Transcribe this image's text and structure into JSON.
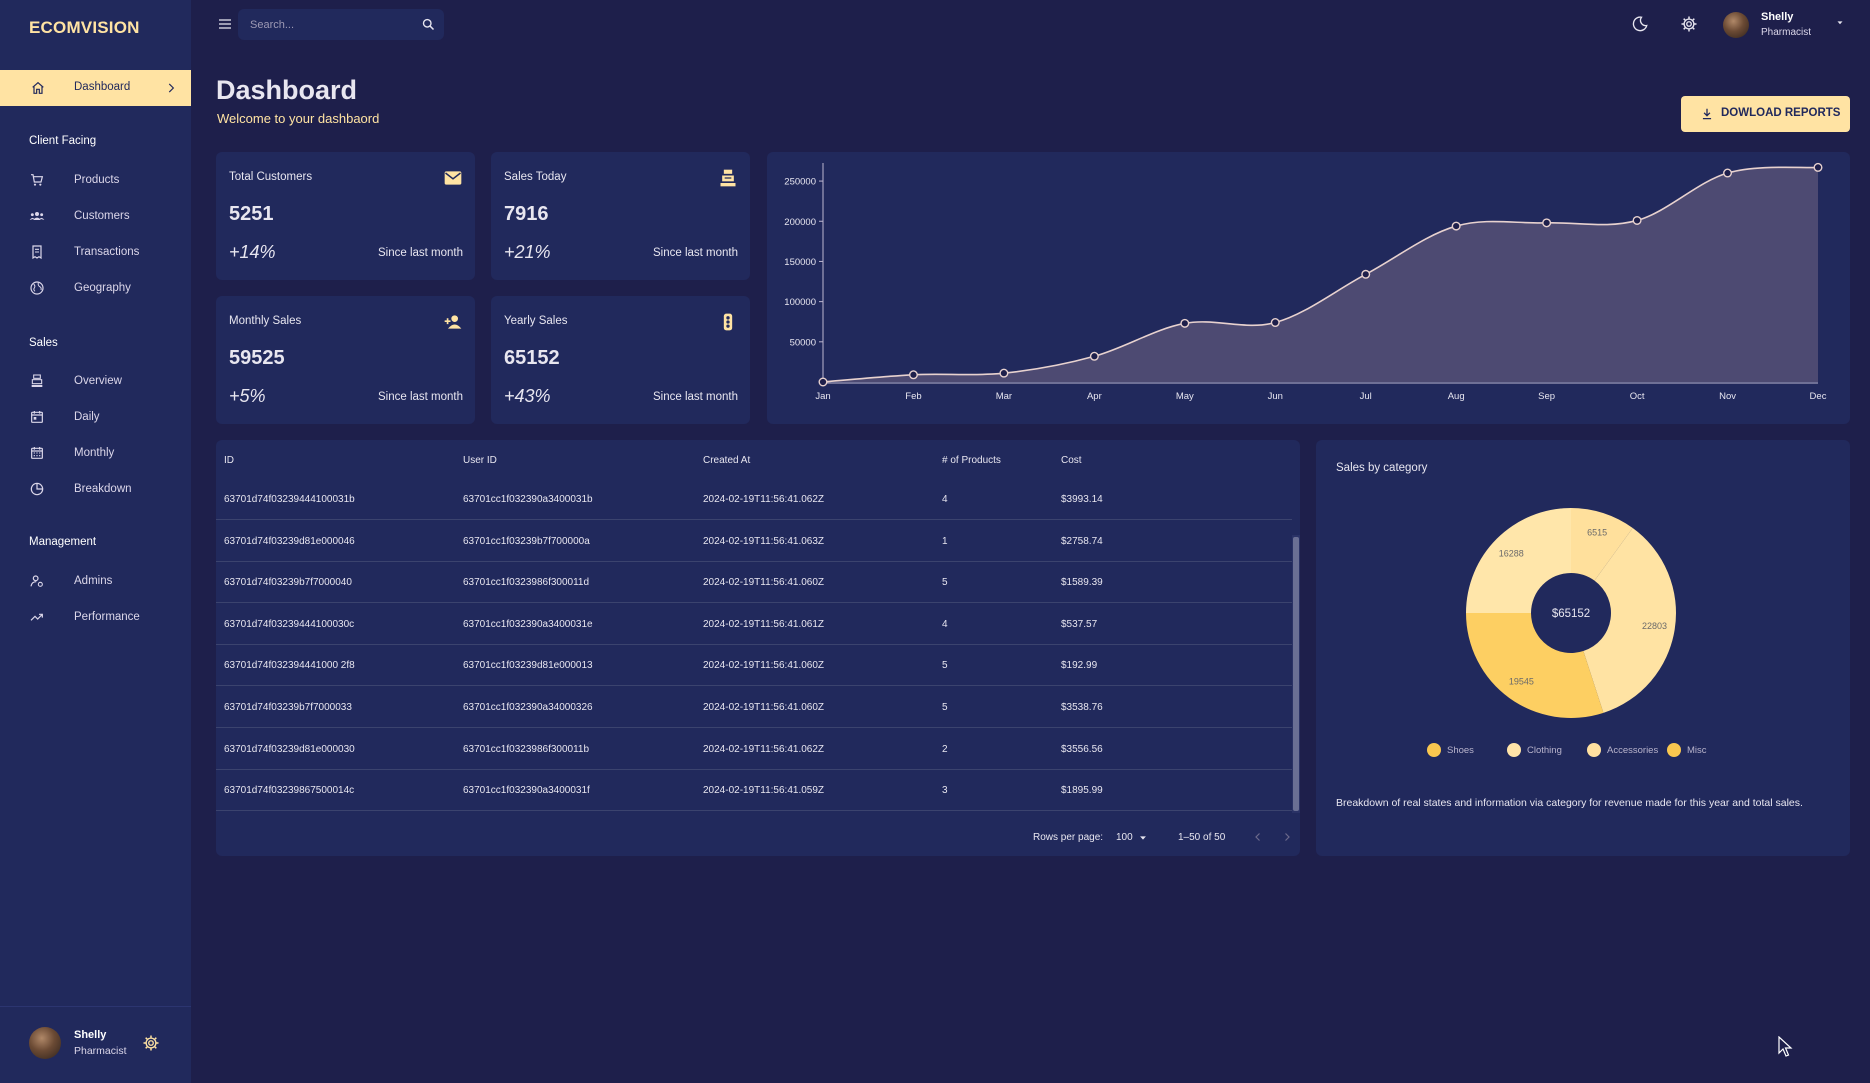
{
  "app": {
    "brand": "ECOMVISION"
  },
  "sidebar": {
    "active": {
      "label": "Dashboard",
      "icon": "home-icon"
    },
    "sections": [
      {
        "title": "Client Facing",
        "items": [
          {
            "label": "Products",
            "icon": "cart-icon"
          },
          {
            "label": "Customers",
            "icon": "groups-icon"
          },
          {
            "label": "Transactions",
            "icon": "receipt-icon"
          },
          {
            "label": "Geography",
            "icon": "globe-icon"
          }
        ]
      },
      {
        "title": "Sales",
        "items": [
          {
            "label": "Overview",
            "icon": "point-of-sale-icon"
          },
          {
            "label": "Daily",
            "icon": "calendar-today-icon"
          },
          {
            "label": "Monthly",
            "icon": "calendar-month-icon"
          },
          {
            "label": "Breakdown",
            "icon": "pie-chart-icon"
          }
        ]
      },
      {
        "title": "Management",
        "items": [
          {
            "label": "Admins",
            "icon": "admin-icon"
          },
          {
            "label": "Performance",
            "icon": "trending-up-icon"
          }
        ]
      }
    ],
    "user": {
      "name": "Shelly",
      "role": "Pharmacist"
    }
  },
  "topbar": {
    "search_placeholder": "Search...",
    "user": {
      "name": "Shelly",
      "role": "Pharmacist"
    }
  },
  "header": {
    "title": "Dashboard",
    "subtitle": "Welcome to your dashbaord",
    "download_label": "DOWLOAD REPORTS"
  },
  "stats": [
    {
      "title": "Total Customers",
      "value": "5251",
      "increase": "+14%",
      "description": "Since last month",
      "icon": "email-icon"
    },
    {
      "title": "Sales Today",
      "value": "7916",
      "increase": "+21%",
      "description": "Since last month",
      "icon": "point-of-sale-icon"
    },
    {
      "title": "Monthly Sales",
      "value": "59525",
      "increase": "+5%",
      "description": "Since last month",
      "icon": "person-add-icon"
    },
    {
      "title": "Yearly Sales",
      "value": "65152",
      "increase": "+43%",
      "description": "Since last month",
      "icon": "traffic-icon"
    }
  ],
  "chart_data": [
    {
      "type": "area",
      "x": [
        "Jan",
        "Feb",
        "Mar",
        "Apr",
        "May",
        "Jun",
        "Jul",
        "Aug",
        "Sep",
        "Oct",
        "Nov",
        "Dec"
      ],
      "series": [
        {
          "values": [
            0,
            9000,
            11000,
            32000,
            73000,
            74000,
            134000,
            194000,
            198000,
            201000,
            260000,
            267000
          ]
        }
      ],
      "yticks": [
        50000,
        100000,
        150000,
        200000,
        250000
      ],
      "ylim": [
        0,
        270000
      ],
      "grid": false,
      "colors": {
        "line": "#e8d2cf",
        "fill": "#4d4a72"
      }
    },
    {
      "type": "pie",
      "title": "Sales by category",
      "center_label": "$65152",
      "slices": [
        {
          "label": "Shoes",
          "value": 6515,
          "color": "#ffe09c"
        },
        {
          "label": "Clothing",
          "value": 22803,
          "color": "#ffe3a3"
        },
        {
          "label": "Accessories",
          "value": 19545,
          "color": "#fdcf62"
        },
        {
          "label": "Misc",
          "value": 16288,
          "color": "#ffe6aa"
        }
      ],
      "legend": [
        {
          "label": "Shoes",
          "color": "#f9c74f"
        },
        {
          "label": "Clothing",
          "color": "#ffe4a8"
        },
        {
          "label": "Accessories",
          "color": "#ffe0a0"
        },
        {
          "label": "Misc",
          "color": "#f9c74f"
        }
      ],
      "legend_position": "bottom",
      "description": "Breakdown of real states and information via category for revenue made for this year and total sales."
    }
  ],
  "table": {
    "columns": [
      "ID",
      "User ID",
      "Created At",
      "# of Products",
      "Cost"
    ],
    "rows": [
      [
        "63701d74f03239444100031b",
        "63701cc1f032390a3400031b",
        "2024-02-19T11:56:41.062Z",
        "4",
        "$3993.14"
      ],
      [
        "63701d74f03239d81e000046",
        "63701cc1f03239b7f700000a",
        "2024-02-19T11:56:41.063Z",
        "1",
        "$2758.74"
      ],
      [
        "63701d74f03239b7f7000040",
        "63701cc1f0323986f300011d",
        "2024-02-19T11:56:41.060Z",
        "5",
        "$1589.39"
      ],
      [
        "63701d74f03239444100030c",
        "63701cc1f032390a3400031e",
        "2024-02-19T11:56:41.061Z",
        "4",
        "$537.57"
      ],
      [
        "63701d74f032394441000 2f8",
        "63701cc1f03239d81e000013",
        "2024-02-19T11:56:41.060Z",
        "5",
        "$192.99"
      ],
      [
        "63701d74f03239b7f7000033",
        "63701cc1f032390a34000326",
        "2024-02-19T11:56:41.060Z",
        "5",
        "$3538.76"
      ],
      [
        "63701d74f03239d81e000030",
        "63701cc1f0323986f300011b",
        "2024-02-19T11:56:41.062Z",
        "2",
        "$3556.56"
      ],
      [
        "63701d74f03239867500014c",
        "63701cc1f032390a3400031f",
        "2024-02-19T11:56:41.059Z",
        "3",
        "$1895.99"
      ]
    ],
    "pagination": {
      "rows_per_page_label": "Rows per page:",
      "rows_per_page": "100",
      "range": "1–50 of 50"
    }
  }
}
